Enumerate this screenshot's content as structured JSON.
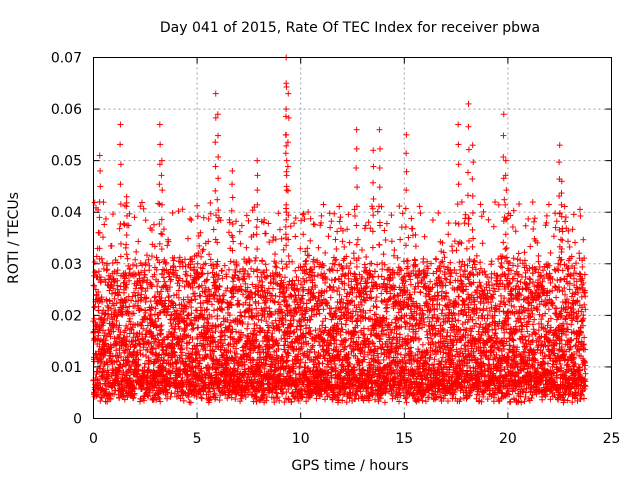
{
  "chart_data": {
    "type": "scatter",
    "title": "Day 041 of 2015, Rate Of TEC Index for receiver pbwa",
    "xlabel": "GPS time / hours",
    "ylabel": "ROTI / TECUs",
    "xlim": [
      0,
      25
    ],
    "ylim": [
      0,
      0.07
    ],
    "xticks": [
      0,
      5,
      10,
      15,
      20,
      25
    ],
    "xtick_labels": [
      "0",
      "5",
      "10",
      "15",
      "20",
      "25"
    ],
    "yticks": [
      0,
      0.01,
      0.02,
      0.03,
      0.04,
      0.05,
      0.06,
      0.07
    ],
    "ytick_labels": [
      "0",
      "0.01",
      "0.02",
      "0.03",
      "0.04",
      "0.05",
      "0.06",
      "0.07"
    ],
    "grid": true,
    "marker": "+",
    "series": [
      {
        "name": "ROTI",
        "color": "#ff0000",
        "x_range": [
          0,
          23.75
        ],
        "sample_interval_hours": 0.02,
        "typical_band": [
          0.005,
          0.03
        ],
        "peaks": [
          {
            "x": 0.3,
            "y": 0.051
          },
          {
            "x": 1.3,
            "y": 0.057
          },
          {
            "x": 1.6,
            "y": 0.043
          },
          {
            "x": 3.2,
            "y": 0.057
          },
          {
            "x": 3.3,
            "y": 0.05
          },
          {
            "x": 5.9,
            "y": 0.063
          },
          {
            "x": 6.0,
            "y": 0.059
          },
          {
            "x": 6.7,
            "y": 0.048
          },
          {
            "x": 7.9,
            "y": 0.05
          },
          {
            "x": 9.3,
            "y": 0.07
          },
          {
            "x": 9.3,
            "y": 0.065
          },
          {
            "x": 9.4,
            "y": 0.063
          },
          {
            "x": 9.3,
            "y": 0.055
          },
          {
            "x": 12.7,
            "y": 0.056
          },
          {
            "x": 13.8,
            "y": 0.056
          },
          {
            "x": 13.5,
            "y": 0.052
          },
          {
            "x": 15.1,
            "y": 0.055
          },
          {
            "x": 17.6,
            "y": 0.057
          },
          {
            "x": 18.1,
            "y": 0.061
          },
          {
            "x": 18.3,
            "y": 0.053
          },
          {
            "x": 19.8,
            "y": 0.059
          },
          {
            "x": 19.9,
            "y": 0.05
          },
          {
            "x": 22.5,
            "y": 0.053
          },
          {
            "x": 22.6,
            "y": 0.046
          }
        ]
      }
    ]
  }
}
